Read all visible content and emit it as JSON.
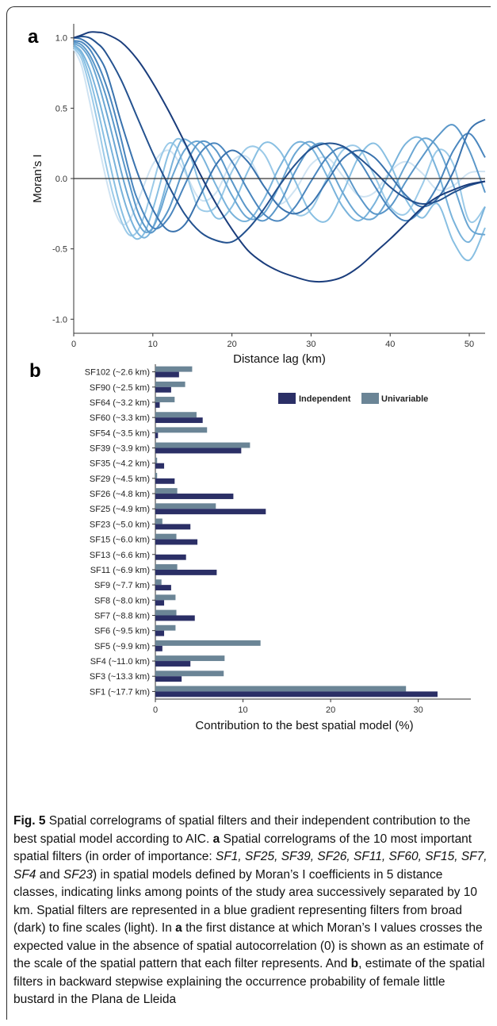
{
  "figure": {
    "panel_a_letter": "a",
    "panel_b_letter": "b"
  },
  "chart_data": [
    {
      "type": "line",
      "ylabel": "Moran’s I",
      "xlabel": "Distance lag (km)",
      "xlim": [
        0,
        52
      ],
      "ylim": [
        -1.1,
        1.1
      ],
      "xticks": [
        0,
        10,
        20,
        30,
        40,
        50
      ],
      "yticks": [
        1.0,
        0.5,
        0.0,
        -0.5,
        -1.0
      ],
      "ytick_labels": [
        "1.0",
        "0.5",
        "0.0",
        "-0.5",
        "-1.0"
      ],
      "reference_line": 0,
      "grid": false,
      "colors": [
        "#1a3d7c",
        "#24528f",
        "#3a73ae",
        "#4a86be",
        "#5a97c9",
        "#6aa6d3",
        "#79b3db",
        "#88bfe2",
        "#9bcae8",
        "#cfe3f2"
      ],
      "series": [
        {
          "x": [
            0,
            1,
            2,
            3,
            4,
            6,
            8,
            10,
            12,
            14,
            16,
            18,
            20,
            22,
            24,
            26,
            28,
            30,
            32,
            34,
            36,
            38,
            40,
            42,
            44,
            46,
            48,
            50,
            52
          ],
          "values": [
            1.0,
            1.02,
            1.04,
            1.04,
            1.03,
            0.97,
            0.85,
            0.68,
            0.48,
            0.26,
            0.03,
            -0.18,
            -0.36,
            -0.51,
            -0.6,
            -0.66,
            -0.7,
            -0.73,
            -0.73,
            -0.7,
            -0.63,
            -0.53,
            -0.43,
            -0.32,
            -0.21,
            -0.13,
            -0.08,
            -0.04,
            -0.02
          ]
        },
        {
          "x": [
            0,
            1,
            2,
            3,
            4,
            6,
            8,
            10,
            12,
            14,
            16,
            18,
            20,
            22,
            24,
            26,
            28,
            30,
            32,
            34,
            36,
            38,
            40,
            42,
            44,
            46,
            48,
            50,
            52
          ],
          "values": [
            1.0,
            1.01,
            1.0,
            0.96,
            0.9,
            0.7,
            0.44,
            0.18,
            -0.05,
            -0.25,
            -0.38,
            -0.44,
            -0.45,
            -0.36,
            -0.22,
            -0.05,
            0.1,
            0.21,
            0.25,
            0.23,
            0.15,
            0.05,
            -0.06,
            -0.14,
            -0.18,
            -0.16,
            -0.1,
            -0.05,
            -0.02
          ]
        },
        {
          "x": [
            0,
            1,
            2,
            3,
            4,
            5,
            6,
            8,
            10,
            12,
            14,
            16,
            18,
            20,
            22,
            24,
            26,
            28,
            30,
            32,
            34,
            36,
            38,
            40,
            42,
            44,
            46,
            48,
            50,
            52
          ],
          "values": [
            1.0,
            0.99,
            0.95,
            0.88,
            0.78,
            0.6,
            0.4,
            0.05,
            -0.22,
            -0.37,
            -0.33,
            -0.12,
            0.1,
            0.2,
            0.12,
            -0.05,
            -0.2,
            -0.25,
            -0.18,
            -0.02,
            0.14,
            0.2,
            0.15,
            0.02,
            -0.12,
            -0.2,
            -0.14,
            0.05,
            0.34,
            0.42
          ]
        },
        {
          "x": [
            0,
            1,
            2,
            3,
            4,
            5,
            6,
            7,
            8,
            10,
            12,
            14,
            16,
            18,
            20,
            22,
            24,
            26,
            28,
            30,
            32,
            34,
            36,
            38,
            40,
            42,
            44,
            46,
            48,
            50,
            52
          ],
          "values": [
            0.98,
            0.97,
            0.92,
            0.82,
            0.68,
            0.5,
            0.28,
            0.05,
            -0.14,
            -0.35,
            -0.28,
            -0.05,
            0.18,
            0.25,
            0.12,
            -0.08,
            -0.25,
            -0.3,
            -0.2,
            -0.02,
            0.15,
            0.22,
            0.13,
            -0.05,
            -0.22,
            -0.3,
            -0.22,
            -0.05,
            0.2,
            0.32,
            0.15
          ]
        },
        {
          "x": [
            0,
            1,
            2,
            3,
            4,
            5,
            6,
            7,
            8,
            9,
            10,
            12,
            14,
            16,
            18,
            20,
            22,
            24,
            26,
            28,
            30,
            32,
            34,
            36,
            38,
            40,
            42,
            44,
            46,
            48,
            50,
            52
          ],
          "values": [
            0.97,
            0.95,
            0.88,
            0.76,
            0.6,
            0.4,
            0.18,
            -0.03,
            -0.22,
            -0.34,
            -0.38,
            -0.22,
            0.08,
            0.26,
            0.2,
            -0.02,
            -0.22,
            -0.3,
            -0.18,
            0.05,
            0.22,
            0.24,
            0.08,
            -0.12,
            -0.25,
            -0.2,
            -0.02,
            0.15,
            0.3,
            0.38,
            0.2,
            -0.1
          ]
        },
        {
          "x": [
            0,
            1,
            2,
            3,
            4,
            5,
            6,
            7,
            8,
            9,
            10,
            11,
            12,
            14,
            16,
            18,
            20,
            22,
            24,
            26,
            28,
            30,
            32,
            34,
            36,
            38,
            40,
            42,
            44,
            46,
            48,
            50,
            52
          ],
          "values": [
            0.96,
            0.93,
            0.85,
            0.7,
            0.5,
            0.28,
            0.05,
            -0.15,
            -0.3,
            -0.38,
            -0.35,
            -0.22,
            -0.05,
            0.2,
            0.26,
            0.1,
            -0.12,
            -0.28,
            -0.25,
            -0.05,
            0.18,
            0.26,
            0.12,
            -0.1,
            -0.26,
            -0.28,
            -0.12,
            0.1,
            0.28,
            0.22,
            -0.05,
            -0.35,
            -0.4
          ]
        },
        {
          "x": [
            0,
            1,
            2,
            3,
            4,
            5,
            6,
            7,
            8,
            9,
            10,
            11,
            12,
            13,
            14,
            16,
            18,
            20,
            22,
            24,
            26,
            28,
            30,
            32,
            34,
            36,
            38,
            40,
            42,
            44,
            46,
            48,
            50,
            52
          ],
          "values": [
            0.95,
            0.9,
            0.78,
            0.6,
            0.38,
            0.15,
            -0.08,
            -0.26,
            -0.38,
            -0.42,
            -0.35,
            -0.18,
            0.02,
            0.2,
            0.28,
            0.18,
            -0.05,
            -0.25,
            -0.3,
            -0.15,
            0.08,
            0.25,
            0.22,
            0.02,
            -0.2,
            -0.3,
            -0.18,
            0.05,
            0.25,
            0.28,
            0.05,
            -0.3,
            -0.45,
            -0.2
          ]
        },
        {
          "x": [
            0,
            1,
            2,
            3,
            4,
            5,
            6,
            7,
            8,
            9,
            10,
            11,
            12,
            13,
            14,
            15,
            16,
            18,
            20,
            22,
            24,
            26,
            28,
            30,
            32,
            34,
            36,
            38,
            40,
            42,
            44,
            46,
            48,
            50,
            52
          ],
          "values": [
            0.94,
            0.88,
            0.72,
            0.5,
            0.25,
            0.0,
            -0.22,
            -0.37,
            -0.43,
            -0.38,
            -0.22,
            -0.02,
            0.18,
            0.28,
            0.25,
            0.12,
            -0.05,
            -0.28,
            -0.2,
            0.05,
            0.25,
            0.2,
            -0.02,
            -0.25,
            -0.3,
            -0.1,
            0.15,
            0.25,
            0.1,
            -0.15,
            -0.28,
            -0.18,
            -0.45,
            -0.58,
            -0.35
          ]
        },
        {
          "x": [
            0,
            1,
            2,
            3,
            4,
            5,
            6,
            7,
            8,
            9,
            10,
            11,
            12,
            13,
            14,
            15,
            16,
            18,
            20,
            22,
            24,
            26,
            28,
            30,
            32,
            34,
            36,
            38,
            40,
            42,
            44,
            46,
            48,
            50,
            52
          ],
          "values": [
            0.93,
            0.85,
            0.65,
            0.4,
            0.12,
            -0.12,
            -0.3,
            -0.4,
            -0.38,
            -0.25,
            -0.05,
            0.15,
            0.25,
            0.22,
            0.08,
            -0.1,
            -0.22,
            -0.2,
            0.05,
            0.22,
            0.18,
            -0.05,
            -0.25,
            -0.22,
            0.0,
            0.2,
            0.22,
            0.02,
            -0.2,
            -0.25,
            -0.05,
            0.2,
            0.1,
            -0.3,
            -0.2
          ]
        },
        {
          "x": [
            0,
            1,
            2,
            3,
            4,
            5,
            6,
            7,
            8,
            10,
            12,
            14,
            16,
            18,
            20,
            22,
            24,
            26,
            28,
            30,
            32,
            34,
            36,
            38,
            40,
            42,
            44,
            46,
            48,
            50,
            52
          ],
          "values": [
            0.92,
            0.8,
            0.55,
            0.28,
            0.02,
            -0.2,
            -0.32,
            -0.3,
            -0.18,
            0.1,
            0.2,
            0.05,
            -0.15,
            -0.1,
            0.12,
            0.15,
            -0.05,
            -0.18,
            -0.08,
            0.1,
            0.15,
            0.02,
            -0.12,
            -0.1,
            0.05,
            0.12,
            0.04,
            -0.08,
            -0.05,
            0.04,
            0.05
          ]
        }
      ]
    },
    {
      "type": "bar",
      "xlabel": "Contribution to the best spatial model (%)",
      "xlim": [
        0,
        36
      ],
      "xticks": [
        0,
        10,
        20,
        30
      ],
      "legend": {
        "position": "top-right",
        "entries": [
          "Independent",
          "Univariable"
        ]
      },
      "colors": {
        "Independent": "#2b2f66",
        "Univariable": "#6b8596"
      },
      "categories": [
        "SF102 (~2.6 km)",
        "SF90 (~2.5 km)",
        "SF64 (~3.2 km)",
        "SF60 (~3.3 km)",
        "SF54 (~3.5 km)",
        "SF39 (~3.9 km)",
        "SF35 (~4.2 km)",
        "SF29 (~4.5 km)",
        "SF26 (~4.8 km)",
        "SF25 (~4.9 km)",
        "SF23 (~5.0 km)",
        "SF15 (~6.0 km)",
        "SF13 (~6.6 km)",
        "SF11 (~6.9 km)",
        "SF9 (~7.7 km)",
        "SF8 (~8.0 km)",
        "SF7 (~8.8 km)",
        "SF6 (~9.5 km)",
        "SF5 (~9.9 km)",
        "SF4 (~11.0 km)",
        "SF3 (~13.3 km)",
        "SF1 (~17.7 km)"
      ],
      "series": [
        {
          "name": "Independent",
          "values": [
            2.7,
            1.8,
            0.5,
            5.4,
            0.3,
            9.8,
            1.0,
            2.2,
            8.9,
            12.6,
            4.0,
            4.8,
            3.5,
            7.0,
            1.8,
            1.0,
            4.5,
            1.0,
            0.8,
            4.0,
            3.0,
            32.2
          ]
        },
        {
          "name": "Univariable",
          "values": [
            4.2,
            3.4,
            2.2,
            4.7,
            5.9,
            10.8,
            0.2,
            0.2,
            2.5,
            6.9,
            0.8,
            2.4,
            0.0,
            2.5,
            0.7,
            2.3,
            2.4,
            2.3,
            12.0,
            7.9,
            7.8,
            28.6
          ]
        }
      ]
    }
  ],
  "caption": {
    "label": "Fig. 5",
    "text_1": "  Spatial correlograms of spatial filters and their independent contribution to the best spatial model according to AIC. ",
    "bold_a1": "a",
    "text_2": " Spatial correlograms of the 10 most important spatial filters (in order of importance: ",
    "italic_list": "SF1, SF25, SF39, SF26, SF11, SF60, SF15, SF7, SF4",
    "text_and": " and ",
    "italic_last": "SF23",
    "text_3": ") in spatial models defined by Moran’s I coefficients in 5 distance classes, indicating links among points of the study area successively separated by 10 km. Spatial filters are represented in a blue gradient representing filters from broad (dark) to fine scales (light). In ",
    "bold_a2": "a",
    "text_4": " the first distance at which Moran’s I values crosses the expected value in the absence of spatial autocorrelation (0) is shown as an estimate of the scale of the spatial pattern that each filter represents. And ",
    "bold_b": "b",
    "text_5": ", estimate of the spatial filters in backward stepwise explaining the occurrence probability of female little bustard in the Plana de Lleida"
  }
}
